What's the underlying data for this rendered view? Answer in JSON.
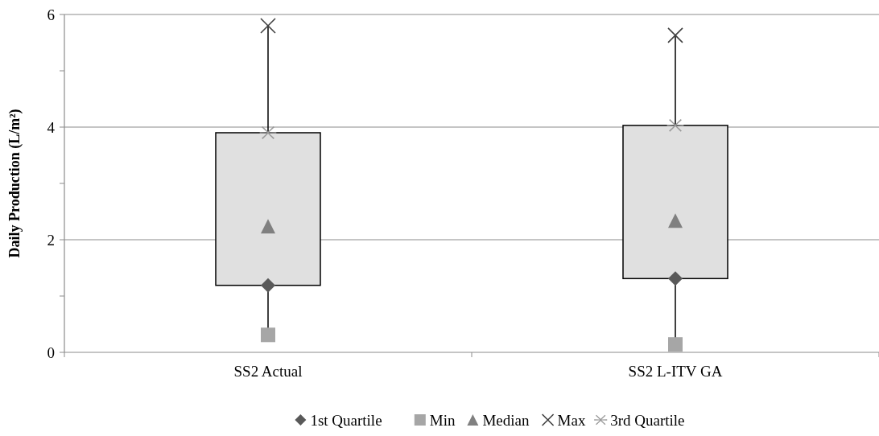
{
  "chart_data": {
    "type": "box",
    "ylabel": "Daily Production (L/m²)",
    "categories": [
      "SS2 Actual",
      "SS2 L-ITV GA"
    ],
    "color": "#e0e0e0",
    "boxes": [
      {
        "low": 0.31,
        "q1": 1.19,
        "q3": 3.9,
        "high": 5.8
      },
      {
        "low": 0.14,
        "q1": 1.31,
        "q3": 4.03,
        "high": 5.63
      }
    ],
    "series": [
      {
        "name": "1st Quartile",
        "type": "scatter",
        "marker": "diamond",
        "color": "#595959",
        "values": [
          1.19,
          1.31
        ]
      },
      {
        "name": "Min",
        "type": "scatter",
        "marker": "square",
        "color": "#a6a6a6",
        "values": [
          0.31,
          0.14
        ]
      },
      {
        "name": "Median",
        "type": "scatter",
        "marker": "triangle",
        "color": "#808080",
        "values": [
          2.24,
          2.34
        ]
      },
      {
        "name": "Max",
        "type": "scatter",
        "marker": "cross",
        "color": "#404040",
        "values": [
          5.8,
          5.63
        ]
      },
      {
        "name": "3rd Quartile",
        "type": "scatter",
        "marker": "star",
        "color": "#999999",
        "values": [
          3.9,
          4.03
        ]
      }
    ],
    "ylim": [
      0,
      6
    ],
    "yticks": [
      0,
      {
        "value": 1,
        "label": null
      },
      2,
      {
        "value": 3,
        "label": null
      },
      4,
      {
        "value": 5,
        "label": null
      },
      6
    ],
    "grid": "y",
    "legend": "bottom"
  }
}
